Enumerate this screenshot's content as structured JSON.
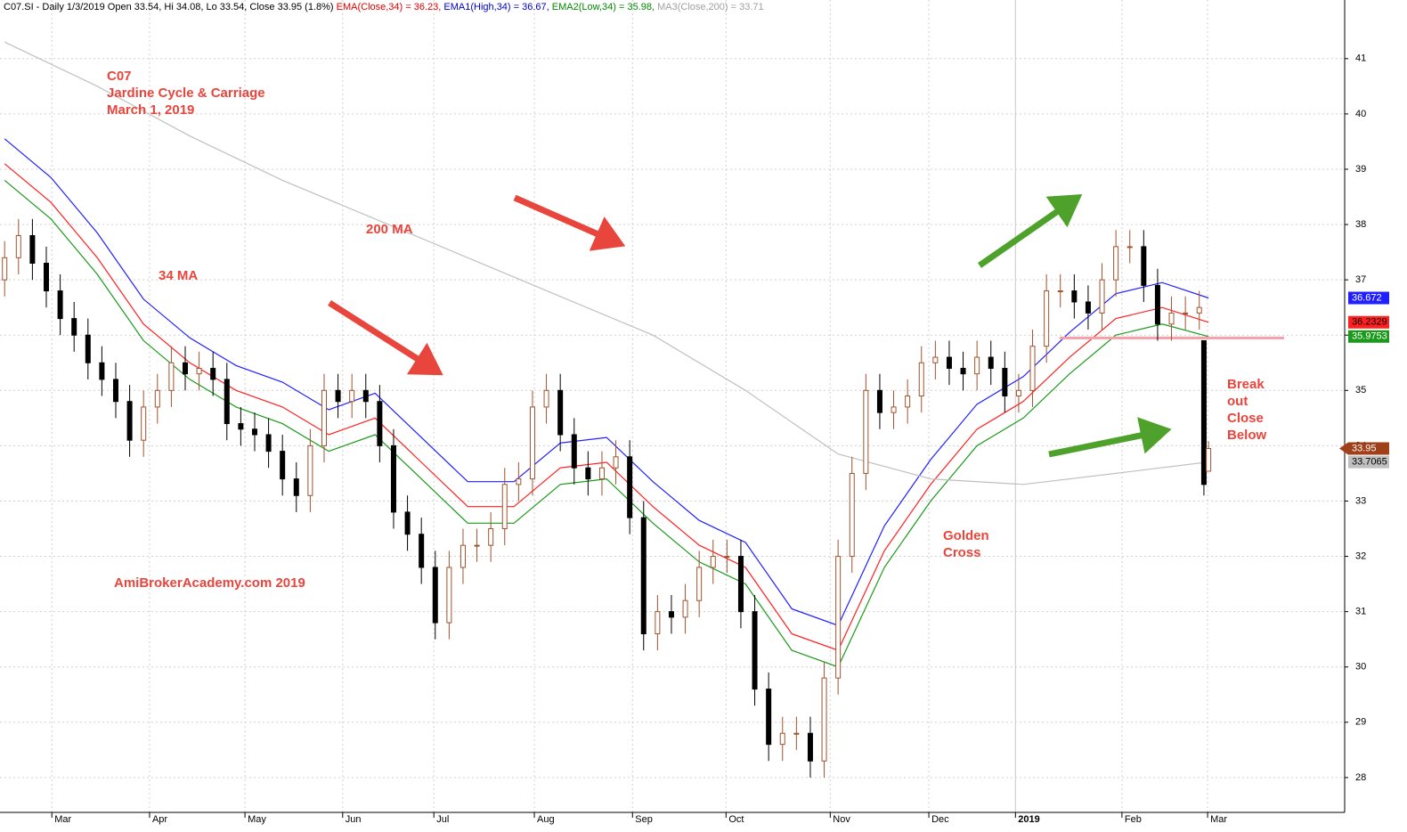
{
  "chart_data": {
    "type": "candlestick",
    "header": [
      {
        "text": "C07.SI - Daily 1/3/2019 Open 33.54, Hi 34.08, Lo 33.54, Close 33.95 (1.8%) ",
        "color": "#000000"
      },
      {
        "text": "EMA(Close,34) = 36.23, ",
        "color": "#e00000"
      },
      {
        "text": "EMA1(High,34) = 36.67, ",
        "color": "#0000cc"
      },
      {
        "text": "EMA2(Low,34) = 35.98, ",
        "color": "#008800"
      },
      {
        "text": "MA3(Close,200) = 33.71",
        "color": "#a0a0a0"
      }
    ],
    "annotations": [
      "C07",
      "Jardine Cycle & Carriage",
      "March 1, 2019",
      "200 MA",
      "34 MA",
      "AmiBrokerAcademy.com  2019",
      "Golden",
      "Cross",
      "Break",
      "out",
      "Close",
      "Below"
    ],
    "xlim": [
      -1,
      289.4
    ],
    "ylim": [
      27.37,
      42.06
    ],
    "xticks": [
      {
        "value": 10.2,
        "label": "Mar"
      },
      {
        "value": 31.3,
        "label": "Apr"
      },
      {
        "value": 51.9,
        "label": "May"
      },
      {
        "value": 73,
        "label": "Jun"
      },
      {
        "value": 92.7,
        "label": "Jul"
      },
      {
        "value": 114.4,
        "label": "Aug"
      },
      {
        "value": 135.6,
        "label": "Sep"
      },
      {
        "value": 155.8,
        "label": "Oct"
      },
      {
        "value": 178.3,
        "label": "Nov"
      },
      {
        "value": 199.6,
        "label": "Dec"
      },
      {
        "value": 218.3,
        "label": "2019"
      },
      {
        "value": 241.3,
        "label": "Feb"
      },
      {
        "value": 259.8,
        "label": "Mar"
      }
    ],
    "yticks": [
      28,
      29,
      30,
      31,
      32,
      33,
      34,
      35,
      36,
      37,
      38,
      39,
      40,
      41
    ],
    "grid": true,
    "up_color": "#a0522d",
    "down_color": "#000000",
    "level": 35.95,
    "level_color": "#f4a0a8",
    "candles": {
      "x": [
        0,
        3,
        6,
        9,
        12,
        15,
        18,
        21,
        24,
        27,
        30,
        33,
        36,
        39,
        42,
        45,
        48,
        51,
        54,
        57,
        60,
        63,
        66,
        69,
        72,
        75,
        78,
        81,
        84,
        87,
        90,
        93,
        96,
        99,
        102,
        105,
        108,
        111,
        114,
        117,
        120,
        123,
        126,
        129,
        132,
        135,
        138,
        141,
        144,
        147,
        150,
        153,
        156,
        159,
        162,
        165,
        168,
        171,
        174,
        177,
        180,
        183,
        186,
        189,
        192,
        195,
        198,
        201,
        204,
        207,
        210,
        213,
        216,
        219,
        222,
        225,
        228,
        231,
        234,
        237,
        240,
        243,
        246,
        249,
        252,
        255,
        258,
        259,
        260
      ],
      "open": [
        37.0,
        37.4,
        37.8,
        37.3,
        36.8,
        36.3,
        36.0,
        35.5,
        35.2,
        34.8,
        34.1,
        34.7,
        35.0,
        35.5,
        35.3,
        35.4,
        35.2,
        34.4,
        34.3,
        34.2,
        33.9,
        33.4,
        33.1,
        34.0,
        35.0,
        34.8,
        35.0,
        34.8,
        34.0,
        32.8,
        32.4,
        31.8,
        30.8,
        31.8,
        32.2,
        32.2,
        32.5,
        33.3,
        33.4,
        34.7,
        35.0,
        34.2,
        33.6,
        33.4,
        33.6,
        33.8,
        32.7,
        30.6,
        31.0,
        30.9,
        31.2,
        31.8,
        32.0,
        32.0,
        31.0,
        29.6,
        28.6,
        28.8,
        28.8,
        28.3,
        29.8,
        32.0,
        33.5,
        35.0,
        34.6,
        34.7,
        34.9,
        35.5,
        35.6,
        35.4,
        35.3,
        35.6,
        35.4,
        34.9,
        35.0,
        35.8,
        36.8,
        36.8,
        36.6,
        36.4,
        37.0,
        37.6,
        37.6,
        36.9,
        36.2,
        36.4,
        36.4,
        35.9,
        33.54
      ],
      "high": [
        37.7,
        38.1,
        38.1,
        37.6,
        37.1,
        36.6,
        36.3,
        35.8,
        35.5,
        35.1,
        35.0,
        35.3,
        35.8,
        35.8,
        35.7,
        35.7,
        35.5,
        34.7,
        34.6,
        34.5,
        34.2,
        33.7,
        34.3,
        35.3,
        35.3,
        35.3,
        35.3,
        35.1,
        34.3,
        33.1,
        32.7,
        32.1,
        32.1,
        32.5,
        32.5,
        32.8,
        33.6,
        33.7,
        35.0,
        35.3,
        35.3,
        34.5,
        33.9,
        33.9,
        34.1,
        34.1,
        33.0,
        31.3,
        31.3,
        31.5,
        32.1,
        32.3,
        32.3,
        32.3,
        31.3,
        29.9,
        29.1,
        29.1,
        29.1,
        30.1,
        32.3,
        33.8,
        35.3,
        35.3,
        35.0,
        35.2,
        35.8,
        35.9,
        35.9,
        35.7,
        35.9,
        35.9,
        35.7,
        35.3,
        36.1,
        37.1,
        37.1,
        37.1,
        36.9,
        37.3,
        37.9,
        37.9,
        37.9,
        37.2,
        36.7,
        36.7,
        36.8,
        35.9,
        34.08
      ],
      "low": [
        36.7,
        37.1,
        37.0,
        36.5,
        36.0,
        35.7,
        35.2,
        34.9,
        34.5,
        33.8,
        33.8,
        34.4,
        34.7,
        35.0,
        35.0,
        34.9,
        34.1,
        34.0,
        33.9,
        33.6,
        33.1,
        32.8,
        32.8,
        33.7,
        34.5,
        34.5,
        34.5,
        33.7,
        32.5,
        32.1,
        31.5,
        30.5,
        30.5,
        31.5,
        31.9,
        31.9,
        32.2,
        33.0,
        33.1,
        34.4,
        33.9,
        33.3,
        33.1,
        33.1,
        33.3,
        32.4,
        30.3,
        30.3,
        30.6,
        30.6,
        30.9,
        31.5,
        31.7,
        30.7,
        29.3,
        28.3,
        28.3,
        28.5,
        28.0,
        28.0,
        29.5,
        31.7,
        33.2,
        34.3,
        34.3,
        34.4,
        34.6,
        35.2,
        35.1,
        35.0,
        35.0,
        35.1,
        34.6,
        34.6,
        34.7,
        35.5,
        36.5,
        36.3,
        36.1,
        36.1,
        36.7,
        37.3,
        36.6,
        35.9,
        35.9,
        36.1,
        36.1,
        33.1,
        33.54
      ],
      "close": [
        37.4,
        37.8,
        37.3,
        36.8,
        36.3,
        36.0,
        35.5,
        35.2,
        34.8,
        34.1,
        34.7,
        35.0,
        35.5,
        35.3,
        35.4,
        35.2,
        34.4,
        34.3,
        34.2,
        33.9,
        33.4,
        33.1,
        34.0,
        35.0,
        34.8,
        35.0,
        34.8,
        34.0,
        32.8,
        32.4,
        31.8,
        30.8,
        31.8,
        32.2,
        32.2,
        32.5,
        33.3,
        33.4,
        34.7,
        35.0,
        34.2,
        33.6,
        33.4,
        33.6,
        33.8,
        32.7,
        30.6,
        31.0,
        30.9,
        31.2,
        31.8,
        32.0,
        32.0,
        31.0,
        29.6,
        28.6,
        28.8,
        28.8,
        28.3,
        29.8,
        32.0,
        33.5,
        35.0,
        34.6,
        34.7,
        34.9,
        35.5,
        35.6,
        35.4,
        35.3,
        35.6,
        35.4,
        34.9,
        35.0,
        35.8,
        36.8,
        36.8,
        36.6,
        36.4,
        37.0,
        37.6,
        37.6,
        36.9,
        36.2,
        36.4,
        36.4,
        36.5,
        33.3,
        33.95
      ],
      "last_label": "33.95",
      "label_color": "#a0401a"
    },
    "series": [
      {
        "name": "EMA1(High,34)",
        "color": "#2020ff",
        "last_label": "36.672",
        "label_text": "#ffffff",
        "x": [
          0,
          10,
          20,
          30,
          40,
          50,
          60,
          70,
          80,
          90,
          100,
          110,
          120,
          130,
          140,
          150,
          160,
          170,
          180,
          190,
          200,
          210,
          220,
          230,
          240,
          250,
          260
        ],
        "values": [
          39.55,
          38.85,
          37.85,
          36.65,
          35.95,
          35.45,
          35.15,
          34.65,
          34.95,
          34.15,
          33.35,
          33.35,
          34.05,
          34.15,
          33.35,
          32.65,
          32.25,
          31.05,
          30.75,
          32.55,
          33.75,
          34.75,
          35.25,
          36.05,
          36.75,
          36.95,
          36.672
        ]
      },
      {
        "name": "EMA(Close,34)",
        "color": "#ff2020",
        "last_label": "36.2329",
        "label_text": "#000000",
        "x": [
          0,
          10,
          20,
          30,
          40,
          50,
          60,
          70,
          80,
          90,
          100,
          110,
          120,
          130,
          140,
          150,
          160,
          170,
          180,
          190,
          200,
          210,
          220,
          230,
          240,
          250,
          260
        ],
        "values": [
          39.1,
          38.4,
          37.4,
          36.2,
          35.5,
          35.0,
          34.7,
          34.2,
          34.5,
          33.7,
          32.9,
          32.9,
          33.6,
          33.7,
          32.9,
          32.2,
          31.8,
          30.6,
          30.3,
          32.1,
          33.3,
          34.3,
          34.8,
          35.6,
          36.3,
          36.5,
          36.2329
        ]
      },
      {
        "name": "EMA2(Low,34)",
        "color": "#1a9a1a",
        "last_label": "35.9753",
        "label_text": "#ffffff",
        "x": [
          0,
          10,
          20,
          30,
          40,
          50,
          60,
          70,
          80,
          90,
          100,
          110,
          120,
          130,
          140,
          150,
          160,
          170,
          180,
          190,
          200,
          210,
          220,
          230,
          240,
          250,
          260
        ],
        "values": [
          38.8,
          38.1,
          37.1,
          35.9,
          35.2,
          34.7,
          34.4,
          33.9,
          34.2,
          33.4,
          32.6,
          32.6,
          33.3,
          33.4,
          32.6,
          31.9,
          31.5,
          30.3,
          30.0,
          31.8,
          33.0,
          34.0,
          34.5,
          35.3,
          36.0,
          36.2,
          35.9753
        ]
      },
      {
        "name": "MA3(Close,200)",
        "color": "#c0c0c0",
        "last_label": "33.7065",
        "label_text": "#000000",
        "x": [
          0,
          20,
          40,
          60,
          80,
          100,
          120,
          140,
          160,
          180,
          200,
          220,
          240,
          260
        ],
        "values": [
          41.3,
          40.5,
          39.6,
          38.8,
          38.1,
          37.4,
          36.7,
          36.0,
          35.0,
          33.85,
          33.4,
          33.3,
          33.5,
          33.7065
        ]
      }
    ]
  }
}
